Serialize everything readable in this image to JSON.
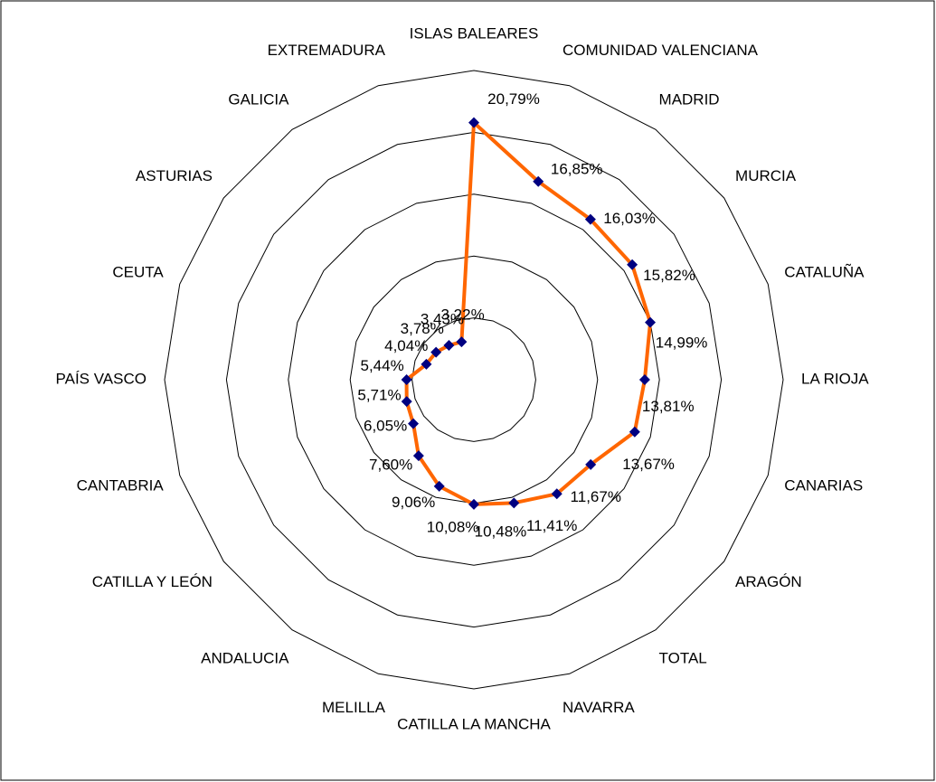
{
  "chart_data": {
    "type": "radar",
    "categories": [
      "ISLAS BALEARES",
      "COMUNIDAD VALENCIANA",
      "MADRID",
      "MURCIA",
      "CATALUÑA",
      "LA RIOJA",
      "CANARIAS",
      "ARAGÓN",
      "TOTAL",
      "NAVARRA",
      "CATILLA LA MANCHA",
      "MELILLA",
      "ANDALUCIA",
      "CATILLA Y LEÓN",
      "CANTABRIA",
      "PAÍS VASCO",
      "CEUTA",
      "ASTURIAS",
      "GALICIA",
      "EXTREMADURA"
    ],
    "values": [
      20.79,
      16.85,
      16.03,
      15.82,
      14.99,
      13.81,
      13.67,
      11.67,
      11.41,
      10.48,
      10.08,
      9.06,
      7.6,
      6.05,
      5.71,
      5.44,
      4.04,
      3.78,
      3.43,
      3.22
    ],
    "value_labels": [
      "20,79%",
      "16,85%",
      "16,03%",
      "15,82%",
      "14,99%",
      "13,81%",
      "13,67%",
      "11,67%",
      "11,41%",
      "10,48%",
      "10,08%",
      "9,06%",
      "7,60%",
      "6,05%",
      "5,71%",
      "5,44%",
      "4,04%",
      "3,78%",
      "3,43%",
      "3,22%"
    ],
    "color": "#ff6600",
    "marker_color": "#000080",
    "ylim": [
      0,
      25
    ],
    "yticks": [
      5,
      10,
      15,
      20,
      25
    ],
    "grid": true
  }
}
